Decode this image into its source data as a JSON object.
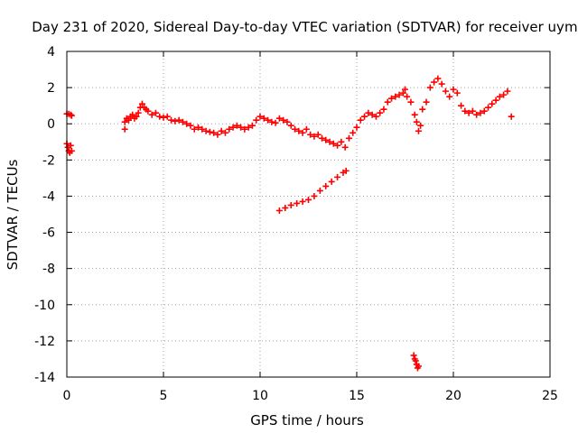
{
  "chart_data": {
    "type": "scatter",
    "title": "Day 231 of 2020, Sidereal Day-to-day VTEC variation (SDTVAR) for receiver uymo",
    "xlabel": "GPS time / hours",
    "ylabel": "SDTVAR / TECUs",
    "xlim": [
      0,
      25
    ],
    "ylim": [
      -14,
      4
    ],
    "xticks": [
      0,
      5,
      10,
      15,
      20,
      25
    ],
    "yticks": [
      4,
      2,
      0,
      -2,
      -4,
      -6,
      -8,
      -10,
      -12,
      -14
    ],
    "grid": true,
    "marker": "+",
    "colors": {
      "series": "#ff0000",
      "grid": "#a0a0a0",
      "axis": "#000000"
    },
    "series": [
      {
        "name": "SDTVAR",
        "points": [
          [
            0.0,
            0.55
          ],
          [
            0.1,
            0.55
          ],
          [
            0.2,
            0.5
          ],
          [
            0.25,
            0.45
          ],
          [
            0.0,
            -1.1
          ],
          [
            0.05,
            -1.3
          ],
          [
            0.1,
            -1.5
          ],
          [
            0.15,
            -1.6
          ],
          [
            0.2,
            -1.2
          ],
          [
            0.25,
            -1.5
          ],
          [
            3.0,
            0.1
          ],
          [
            3.0,
            -0.3
          ],
          [
            3.1,
            0.3
          ],
          [
            3.2,
            0.2
          ],
          [
            3.3,
            0.4
          ],
          [
            3.4,
            0.5
          ],
          [
            3.5,
            0.3
          ],
          [
            3.6,
            0.4
          ],
          [
            3.7,
            0.6
          ],
          [
            3.8,
            0.9
          ],
          [
            3.9,
            1.1
          ],
          [
            4.0,
            0.9
          ],
          [
            4.1,
            0.8
          ],
          [
            4.2,
            0.7
          ],
          [
            4.4,
            0.5
          ],
          [
            4.6,
            0.6
          ],
          [
            4.8,
            0.4
          ],
          [
            5.0,
            0.35
          ],
          [
            5.2,
            0.4
          ],
          [
            5.4,
            0.2
          ],
          [
            5.6,
            0.15
          ],
          [
            5.8,
            0.2
          ],
          [
            6.0,
            0.1
          ],
          [
            6.2,
            0.0
          ],
          [
            6.4,
            -0.1
          ],
          [
            6.6,
            -0.3
          ],
          [
            6.8,
            -0.2
          ],
          [
            7.0,
            -0.3
          ],
          [
            7.2,
            -0.4
          ],
          [
            7.4,
            -0.45
          ],
          [
            7.6,
            -0.5
          ],
          [
            7.8,
            -0.6
          ],
          [
            8.0,
            -0.4
          ],
          [
            8.2,
            -0.5
          ],
          [
            8.4,
            -0.3
          ],
          [
            8.6,
            -0.2
          ],
          [
            8.8,
            -0.1
          ],
          [
            9.0,
            -0.2
          ],
          [
            9.2,
            -0.3
          ],
          [
            9.4,
            -0.2
          ],
          [
            9.6,
            -0.1
          ],
          [
            9.8,
            0.2
          ],
          [
            10.0,
            0.4
          ],
          [
            10.2,
            0.3
          ],
          [
            10.4,
            0.2
          ],
          [
            10.6,
            0.1
          ],
          [
            10.8,
            0.05
          ],
          [
            11.0,
            0.3
          ],
          [
            11.2,
            0.2
          ],
          [
            11.4,
            0.1
          ],
          [
            11.6,
            -0.1
          ],
          [
            11.8,
            -0.3
          ],
          [
            12.0,
            -0.4
          ],
          [
            12.2,
            -0.5
          ],
          [
            12.4,
            -0.3
          ],
          [
            12.6,
            -0.6
          ],
          [
            12.8,
            -0.7
          ],
          [
            13.0,
            -0.6
          ],
          [
            13.2,
            -0.8
          ],
          [
            13.4,
            -0.9
          ],
          [
            13.6,
            -1.0
          ],
          [
            13.8,
            -1.1
          ],
          [
            14.0,
            -1.2
          ],
          [
            14.2,
            -1.0
          ],
          [
            14.4,
            -1.3
          ],
          [
            14.6,
            -0.8
          ],
          [
            14.8,
            -0.5
          ],
          [
            15.0,
            -0.2
          ],
          [
            15.2,
            0.2
          ],
          [
            15.4,
            0.4
          ],
          [
            15.6,
            0.6
          ],
          [
            15.8,
            0.5
          ],
          [
            16.0,
            0.4
          ],
          [
            16.2,
            0.6
          ],
          [
            16.4,
            0.8
          ],
          [
            16.6,
            1.2
          ],
          [
            16.8,
            1.4
          ],
          [
            17.0,
            1.5
          ],
          [
            17.2,
            1.6
          ],
          [
            17.4,
            1.7
          ],
          [
            17.5,
            1.9
          ],
          [
            17.6,
            1.5
          ],
          [
            17.8,
            1.2
          ],
          [
            18.0,
            0.5
          ],
          [
            18.1,
            0.1
          ],
          [
            18.2,
            -0.4
          ],
          [
            18.3,
            -0.1
          ],
          [
            18.4,
            0.8
          ],
          [
            18.6,
            1.2
          ],
          [
            18.8,
            2.0
          ],
          [
            19.0,
            2.3
          ],
          [
            19.2,
            2.5
          ],
          [
            19.4,
            2.2
          ],
          [
            19.6,
            1.8
          ],
          [
            19.8,
            1.5
          ],
          [
            20.0,
            1.9
          ],
          [
            20.2,
            1.7
          ],
          [
            20.4,
            1.0
          ],
          [
            20.6,
            0.7
          ],
          [
            20.8,
            0.6
          ],
          [
            21.0,
            0.7
          ],
          [
            21.2,
            0.5
          ],
          [
            21.4,
            0.6
          ],
          [
            21.6,
            0.7
          ],
          [
            21.8,
            0.9
          ],
          [
            22.0,
            1.1
          ],
          [
            22.2,
            1.3
          ],
          [
            22.4,
            1.5
          ],
          [
            22.6,
            1.6
          ],
          [
            22.8,
            1.8
          ],
          [
            23.0,
            0.4
          ],
          [
            11.0,
            -4.8
          ],
          [
            11.3,
            -4.65
          ],
          [
            11.6,
            -4.5
          ],
          [
            11.9,
            -4.4
          ],
          [
            12.2,
            -4.3
          ],
          [
            12.5,
            -4.2
          ],
          [
            12.8,
            -4.0
          ],
          [
            13.1,
            -3.7
          ],
          [
            13.4,
            -3.45
          ],
          [
            13.7,
            -3.2
          ],
          [
            14.0,
            -2.95
          ],
          [
            14.3,
            -2.7
          ],
          [
            14.45,
            -2.6
          ],
          [
            17.95,
            -12.8
          ],
          [
            18.0,
            -13.0
          ],
          [
            18.05,
            -13.1
          ],
          [
            18.1,
            -13.3
          ],
          [
            18.15,
            -13.5
          ],
          [
            18.2,
            -13.4
          ]
        ]
      }
    ]
  }
}
